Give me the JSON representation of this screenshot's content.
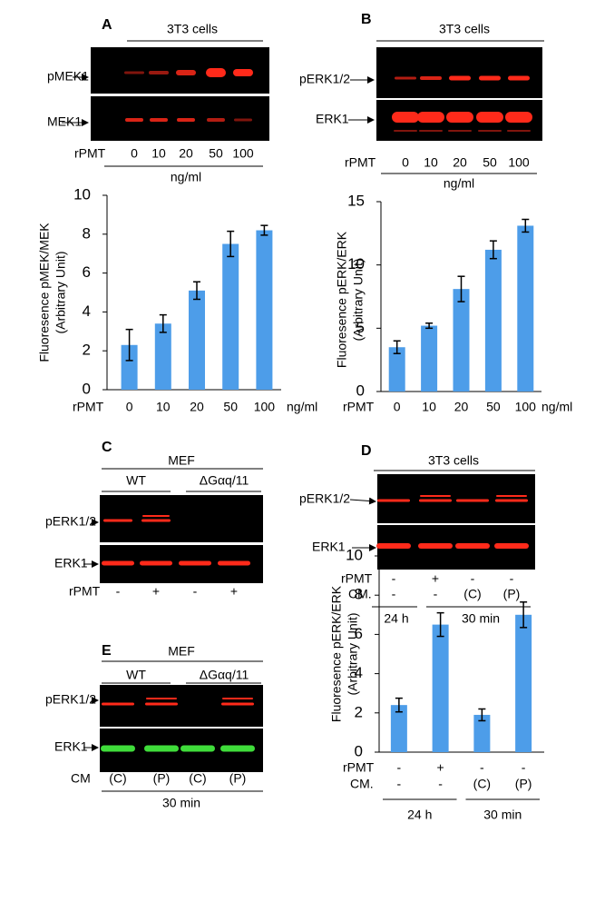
{
  "panels": [
    {
      "letter": "A",
      "header": "3T3 cells",
      "rows": [
        "pMEK1",
        "MEK1"
      ],
      "lane_label": "rPMT",
      "lanes": [
        "0",
        "10",
        "20",
        "50",
        "100"
      ],
      "unit": "ng/ml"
    },
    {
      "letter": "B",
      "header": "3T3 cells",
      "rows": [
        "pERK1/2",
        "ERK1"
      ],
      "lane_label": "rPMT",
      "lanes": [
        "0",
        "10",
        "20",
        "50",
        "100"
      ],
      "unit": "ng/ml"
    },
    {
      "letter": "C",
      "header": "MEF",
      "groups": [
        "WT",
        "ΔGαq/11"
      ],
      "rows": [
        "pERK1/2",
        "ERK1"
      ],
      "lane_label": "rPMT",
      "lanes": [
        "-",
        "+",
        "-",
        "+"
      ]
    },
    {
      "letter": "D",
      "header": "3T3 cells",
      "rows": [
        "pERK1/2",
        "ERK1"
      ],
      "lane_rows": [
        {
          "label": "rPMT",
          "lanes": [
            "-",
            "+",
            "-",
            "-"
          ]
        },
        {
          "label": "CM.",
          "lanes": [
            "-",
            "-",
            "(C)",
            "(P)"
          ]
        }
      ],
      "groups": [
        "24 h",
        "30 min"
      ]
    },
    {
      "letter": "E",
      "header": "MEF",
      "groups": [
        "WT",
        "ΔGαq/11"
      ],
      "rows": [
        "pERK1/2",
        "ERK1"
      ],
      "lane_label": "CM",
      "lanes": [
        "(C)",
        "(P)",
        "(C)",
        "(P)"
      ],
      "footer": "30 min"
    }
  ],
  "chart_data": [
    {
      "type": "bar",
      "ylabel": [
        "Fluoresence pMEK/MEK",
        "(Arbitrary Unit)"
      ],
      "xlabel": "rPMT",
      "unit_label": "ng/ml",
      "categories": [
        "0",
        "10",
        "20",
        "50",
        "100"
      ],
      "values": [
        2.3,
        3.4,
        5.1,
        7.5,
        8.2
      ],
      "errors": [
        0.8,
        0.45,
        0.45,
        0.65,
        0.25
      ],
      "color": "#4d9de9",
      "ylim": [
        0,
        10
      ],
      "yticks": [
        0,
        2,
        4,
        6,
        8,
        10
      ]
    },
    {
      "type": "bar",
      "ylabel": [
        "Fluoresence pERK/ERK",
        "(Arbitrary Unit)"
      ],
      "xlabel": "rPMT",
      "unit_label": "ng/ml",
      "categories": [
        "0",
        "10",
        "20",
        "50",
        "100"
      ],
      "values": [
        3.5,
        5.2,
        8.1,
        11.2,
        13.1
      ],
      "errors": [
        0.5,
        0.2,
        1.0,
        0.7,
        0.5
      ],
      "color": "#4d9de9",
      "ylim": [
        0,
        15
      ],
      "yticks": [
        0,
        5,
        10,
        15
      ]
    },
    {
      "type": "bar",
      "ylabel": [
        "Fluoresence pERK/ERK",
        "(Arbitrary Unit)"
      ],
      "rows": [
        {
          "label": "rPMT",
          "labels": [
            "-",
            "+",
            "-",
            "-"
          ]
        },
        {
          "label": "CM.",
          "labels": [
            "-",
            "-",
            "(C)",
            "(P)"
          ]
        }
      ],
      "groups": [
        {
          "label": "24 h",
          "span": 2
        },
        {
          "label": "30 min",
          "span": 2
        }
      ],
      "values": [
        2.4,
        6.5,
        1.9,
        7.0
      ],
      "errors": [
        0.35,
        0.6,
        0.3,
        0.65
      ],
      "color": "#4d9de9",
      "ylim": [
        0,
        10
      ],
      "yticks": [
        0,
        2,
        4,
        6,
        8,
        10
      ]
    }
  ]
}
